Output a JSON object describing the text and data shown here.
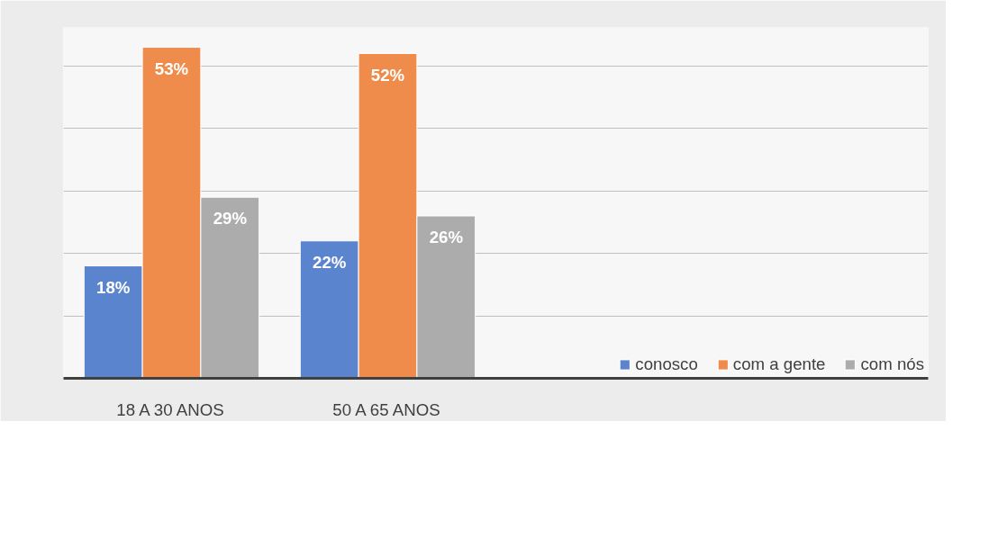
{
  "chart_data": {
    "type": "bar",
    "categories": [
      "18 A 30 ANOS",
      "50 A 65 ANOS",
      null,
      null
    ],
    "series": [
      {
        "name": "conosco",
        "color": "#5b84cf",
        "values": [
          18,
          22,
          null,
          null
        ],
        "value_labels": [
          "18%",
          "22%",
          null,
          null
        ]
      },
      {
        "name": "com a gente",
        "color": "#ef8c4b",
        "values": [
          53,
          52,
          null,
          null
        ],
        "value_labels": [
          "53%",
          "52%",
          null,
          null
        ]
      },
      {
        "name": "com nós",
        "color": "#acacac",
        "values": [
          29,
          26,
          null,
          null
        ],
        "value_labels": [
          "29%",
          "26%",
          null,
          null
        ]
      }
    ],
    "grid": "y",
    "legend": "bottom right",
    "tick_labels": "x"
  }
}
